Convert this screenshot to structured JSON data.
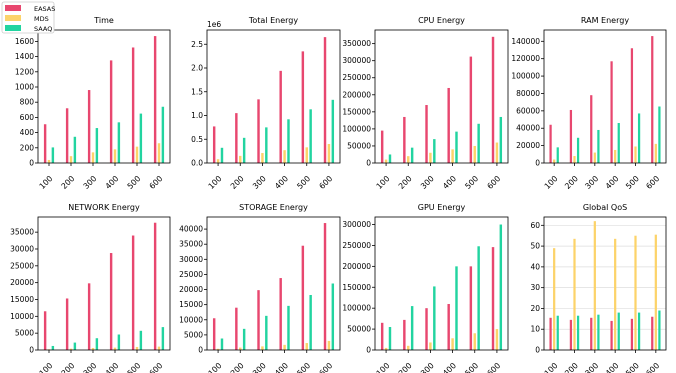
{
  "legend": {
    "placement": "top-left",
    "entries": [
      {
        "name": "EASAS",
        "color": "#e8476f"
      },
      {
        "name": "MDS",
        "color": "#fcd36a"
      },
      {
        "name": "SAAQ",
        "color": "#22d4a0"
      }
    ]
  },
  "chart_data": [
    {
      "type": "bar",
      "title": "Time",
      "scale_note": "",
      "categories": [
        "100",
        "200",
        "300",
        "400",
        "500",
        "600"
      ],
      "ylim": [
        0,
        1750
      ],
      "yticks": [
        0,
        200,
        400,
        600,
        800,
        1000,
        1200,
        1400,
        1600
      ],
      "series": [
        {
          "name": "EASAS",
          "color": "#e8476f",
          "values": [
            510,
            720,
            960,
            1350,
            1520,
            1670
          ]
        },
        {
          "name": "MDS",
          "color": "#fcd36a",
          "values": [
            40,
            90,
            140,
            180,
            215,
            260
          ]
        },
        {
          "name": "SAAQ",
          "color": "#22d4a0",
          "values": [
            205,
            345,
            460,
            535,
            650,
            740
          ]
        }
      ]
    },
    {
      "type": "bar",
      "title": "Total Energy",
      "scale_note": "1e6",
      "categories": [
        "100",
        "200",
        "300",
        "400",
        "500",
        "600"
      ],
      "ylim": [
        0,
        2.8
      ],
      "yticks": [
        0.0,
        0.5,
        1.0,
        1.5,
        2.0,
        2.5
      ],
      "series": [
        {
          "name": "EASAS",
          "color": "#e8476f",
          "values": [
            0.77,
            1.05,
            1.34,
            1.94,
            2.35,
            2.65
          ]
        },
        {
          "name": "MDS",
          "color": "#fcd36a",
          "values": [
            0.08,
            0.15,
            0.21,
            0.27,
            0.33,
            0.4
          ]
        },
        {
          "name": "SAAQ",
          "color": "#22d4a0",
          "values": [
            0.32,
            0.53,
            0.75,
            0.92,
            1.13,
            1.33
          ]
        }
      ]
    },
    {
      "type": "bar",
      "title": "CPU Energy",
      "scale_note": "",
      "categories": [
        "100",
        "200",
        "300",
        "400",
        "500",
        "600"
      ],
      "ylim": [
        0,
        390000
      ],
      "yticks": [
        0,
        50000,
        100000,
        150000,
        200000,
        250000,
        300000,
        350000
      ],
      "series": [
        {
          "name": "EASAS",
          "color": "#e8476f",
          "values": [
            95000,
            135000,
            170000,
            220000,
            312000,
            370000
          ]
        },
        {
          "name": "MDS",
          "color": "#fcd36a",
          "values": [
            10000,
            20000,
            30000,
            40000,
            50000,
            60000
          ]
        },
        {
          "name": "SAAQ",
          "color": "#22d4a0",
          "values": [
            25000,
            45000,
            70000,
            92000,
            115000,
            135000
          ]
        }
      ]
    },
    {
      "type": "bar",
      "title": "RAM Energy",
      "scale_note": "",
      "categories": [
        "100",
        "200",
        "300",
        "400",
        "500",
        "600"
      ],
      "ylim": [
        0,
        153000
      ],
      "yticks": [
        0,
        20000,
        40000,
        60000,
        80000,
        100000,
        120000,
        140000
      ],
      "series": [
        {
          "name": "EASAS",
          "color": "#e8476f",
          "values": [
            44000,
            61000,
            78000,
            117000,
            132000,
            146000
          ]
        },
        {
          "name": "MDS",
          "color": "#fcd36a",
          "values": [
            4000,
            8000,
            12000,
            15000,
            19000,
            22000
          ]
        },
        {
          "name": "SAAQ",
          "color": "#22d4a0",
          "values": [
            18000,
            29000,
            38000,
            46000,
            57000,
            65000
          ]
        }
      ]
    },
    {
      "type": "bar",
      "title": "NETWORK Energy",
      "scale_note": "",
      "categories": [
        "100",
        "200",
        "300",
        "400",
        "500",
        "600"
      ],
      "ylim": [
        0,
        39500
      ],
      "yticks": [
        0,
        5000,
        10000,
        15000,
        20000,
        25000,
        30000,
        35000
      ],
      "series": [
        {
          "name": "EASAS",
          "color": "#e8476f",
          "values": [
            11500,
            15300,
            19800,
            28800,
            34000,
            37800
          ]
        },
        {
          "name": "MDS",
          "color": "#fcd36a",
          "values": [
            200,
            400,
            600,
            700,
            900,
            1000
          ]
        },
        {
          "name": "SAAQ",
          "color": "#22d4a0",
          "values": [
            1200,
            2200,
            3500,
            4600,
            5700,
            6800
          ]
        }
      ]
    },
    {
      "type": "bar",
      "title": "STORAGE Energy",
      "scale_note": "",
      "categories": [
        "100",
        "200",
        "300",
        "400",
        "500",
        "600"
      ],
      "ylim": [
        0,
        44000
      ],
      "yticks": [
        0,
        5000,
        10000,
        15000,
        20000,
        25000,
        30000,
        35000,
        40000
      ],
      "series": [
        {
          "name": "EASAS",
          "color": "#e8476f",
          "values": [
            10500,
            14000,
            19800,
            23800,
            34500,
            42000
          ]
        },
        {
          "name": "MDS",
          "color": "#fcd36a",
          "values": [
            400,
            800,
            1200,
            1700,
            2300,
            3000
          ]
        },
        {
          "name": "SAAQ",
          "color": "#22d4a0",
          "values": [
            3800,
            7000,
            11300,
            14600,
            18200,
            22000
          ]
        }
      ]
    },
    {
      "type": "bar",
      "title": "GPU Energy",
      "scale_note": "",
      "categories": [
        "100",
        "200",
        "300",
        "400",
        "500",
        "600"
      ],
      "ylim": [
        0,
        318000
      ],
      "yticks": [
        0,
        50000,
        100000,
        150000,
        200000,
        250000,
        300000
      ],
      "series": [
        {
          "name": "EASAS",
          "color": "#e8476f",
          "values": [
            65000,
            72000,
            100000,
            110000,
            200000,
            246000
          ]
        },
        {
          "name": "MDS",
          "color": "#fcd36a",
          "values": [
            5000,
            10000,
            18000,
            28000,
            40000,
            50000
          ]
        },
        {
          "name": "SAAQ",
          "color": "#22d4a0",
          "values": [
            55000,
            105000,
            152000,
            200000,
            248000,
            300000
          ]
        }
      ]
    },
    {
      "type": "bar",
      "title": "Global QoS",
      "scale_note": "",
      "categories": [
        "100",
        "200",
        "300",
        "400",
        "500",
        "600"
      ],
      "ylim": [
        0,
        64
      ],
      "yticks": [
        0,
        10,
        20,
        30,
        40,
        50,
        60
      ],
      "grid": "y",
      "series": [
        {
          "name": "EASAS",
          "color": "#e8476f",
          "values": [
            15.5,
            14.5,
            15.5,
            14,
            15,
            16
          ]
        },
        {
          "name": "MDS",
          "color": "#fcd36a",
          "values": [
            49,
            53.5,
            62,
            53.5,
            55,
            55.5
          ]
        },
        {
          "name": "SAAQ",
          "color": "#22d4a0",
          "values": [
            16.5,
            16.5,
            17,
            18,
            18,
            19
          ]
        }
      ]
    }
  ]
}
